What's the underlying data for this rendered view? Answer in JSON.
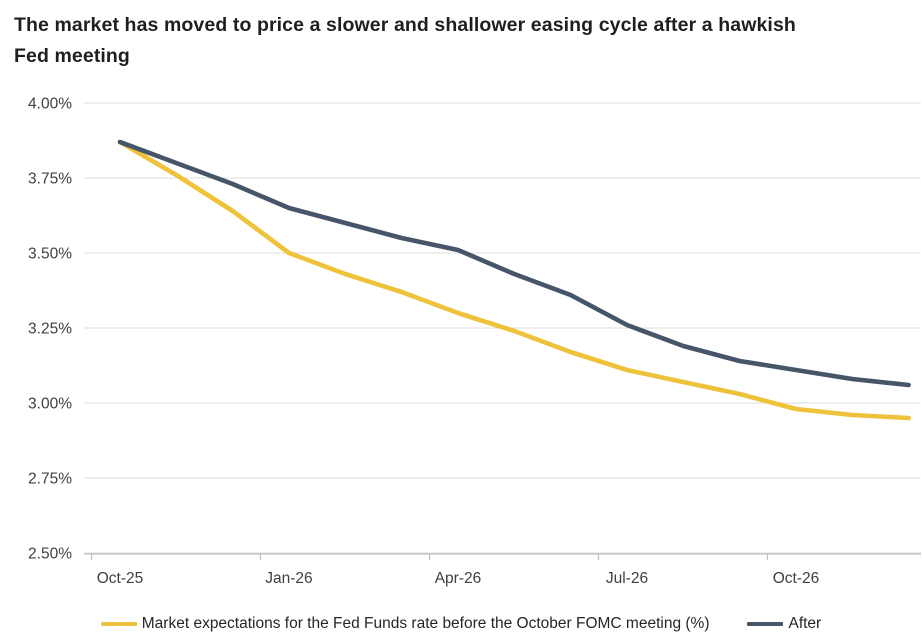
{
  "title": "The market has moved to price a slower and shallower easing cycle after a hawkish Fed meeting",
  "chart_data": {
    "type": "line",
    "categories": [
      "Oct-25",
      "Nov-25",
      "Dec-25",
      "Jan-26",
      "Feb-26",
      "Mar-26",
      "Apr-26",
      "May-26",
      "Jun-26",
      "Jul-26",
      "Aug-26",
      "Sep-26",
      "Oct-26",
      "Nov-26",
      "Dec-26"
    ],
    "x_tick_labels": [
      "Oct-25",
      "Jan-26",
      "Apr-26",
      "Jul-26",
      "Oct-26"
    ],
    "x_label_indices": [
      0,
      3,
      6,
      9,
      12
    ],
    "y_tick_labels": [
      "4.00%",
      "3.75%",
      "3.50%",
      "3.25%",
      "3.00%",
      "2.75%",
      "2.50%"
    ],
    "ylim": [
      2.5,
      4.0
    ],
    "y_step": 0.25,
    "grid": "horizontal",
    "legend_position": "bottom",
    "series": [
      {
        "name": "Market expectations for the Fed Funds rate before the October FOMC meeting (%)",
        "color": "#EFC23B",
        "values": [
          3.87,
          3.76,
          3.64,
          3.5,
          3.43,
          3.37,
          3.3,
          3.24,
          3.17,
          3.11,
          3.07,
          3.03,
          2.98,
          2.96,
          2.95
        ]
      },
      {
        "name": "After",
        "color": "#475569",
        "values": [
          3.87,
          3.8,
          3.73,
          3.65,
          3.6,
          3.55,
          3.51,
          3.43,
          3.36,
          3.26,
          3.19,
          3.14,
          3.11,
          3.08,
          3.06
        ]
      }
    ],
    "colors": {
      "gridline": "#dcdcdc",
      "axis_line": "#c0c0c0",
      "tick_label": "#404040",
      "title": "#1f1f1f"
    }
  }
}
